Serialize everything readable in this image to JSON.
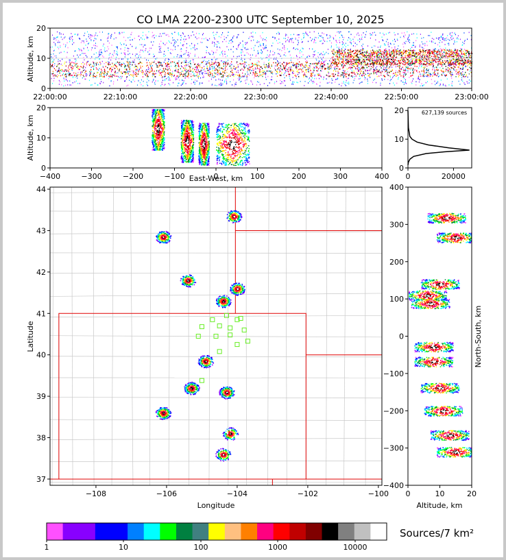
{
  "title": "CO LMA 2200-2300 UTC September 10, 2025",
  "chart_data": [
    {
      "type": "heatmap",
      "name": "time-altitude",
      "ylabel": "Altitude, km",
      "ylim": [
        0,
        20
      ],
      "yticks": [
        "0",
        "10",
        "20"
      ],
      "xticks": [
        "22:00:00",
        "22:10:00",
        "22:20:00",
        "22:30:00",
        "22:40:00",
        "22:50:00",
        "23:00:00"
      ],
      "bands": [
        {
          "t0": 0,
          "t1": 60,
          "alt0": 4,
          "alt1": 9,
          "level": "red"
        },
        {
          "t0": 40,
          "t1": 60,
          "alt0": 8,
          "alt1": 13,
          "level": "red"
        }
      ]
    },
    {
      "type": "heatmap",
      "name": "east-west-altitude",
      "xlabel": "East-West, km",
      "ylabel": "Altitude, km",
      "xlim": [
        -400,
        400
      ],
      "ylim": [
        0,
        20
      ],
      "xticks": [
        "−400",
        "−300",
        "−200",
        "−100",
        "0",
        "100",
        "200",
        "300",
        "400"
      ],
      "yticks": [
        "0",
        "10",
        "20"
      ],
      "clusters": [
        {
          "x": -140,
          "alt": 13,
          "w": 30
        },
        {
          "x": -70,
          "alt": 9,
          "w": 30
        },
        {
          "x": -30,
          "alt": 8,
          "w": 25
        },
        {
          "x": 40,
          "alt": 8,
          "w": 80
        }
      ]
    },
    {
      "type": "line",
      "name": "altitude-histogram",
      "annotation": "627,139 sources",
      "xticks": [
        "0",
        "20000"
      ],
      "yticks": [
        "0",
        "10",
        "20"
      ],
      "xlim": [
        0,
        28000
      ],
      "ylim": [
        0,
        21
      ],
      "x": [
        0,
        200,
        800,
        2500,
        8000,
        16000,
        27000,
        18000,
        9000,
        4000,
        1800,
        800,
        200,
        0
      ],
      "y": [
        1,
        2,
        3,
        4,
        5,
        5.6,
        6.2,
        7,
        8,
        9,
        10,
        11,
        14,
        20
      ]
    },
    {
      "type": "heatmap",
      "name": "plan-view",
      "xlabel": "Longitude",
      "ylabel": "Latitude",
      "xlim": [
        -109.3,
        -99.9
      ],
      "ylim": [
        36.85,
        44.05
      ],
      "xticks": [
        "−108",
        "−106",
        "−104",
        "−102",
        "−100"
      ],
      "yticks": [
        "37",
        "38",
        "39",
        "40",
        "41",
        "42",
        "43",
        "44"
      ],
      "clusters": [
        {
          "lon": -104.1,
          "lat": 43.35
        },
        {
          "lon": -106.1,
          "lat": 42.85
        },
        {
          "lon": -105.4,
          "lat": 41.8
        },
        {
          "lon": -104.0,
          "lat": 41.6
        },
        {
          "lon": -104.4,
          "lat": 41.3
        },
        {
          "lon": -104.9,
          "lat": 39.85
        },
        {
          "lon": -105.3,
          "lat": 39.2
        },
        {
          "lon": -106.1,
          "lat": 38.6
        },
        {
          "lon": -104.2,
          "lat": 38.1
        },
        {
          "lon": -104.4,
          "lat": 37.6
        },
        {
          "lon": -104.3,
          "lat": 39.1
        }
      ],
      "stations": [
        {
          "lon": -104.7,
          "lat": 40.85
        },
        {
          "lon": -104.3,
          "lat": 40.95
        },
        {
          "lon": -104.0,
          "lat": 40.85
        },
        {
          "lon": -103.9,
          "lat": 40.88
        },
        {
          "lon": -105.0,
          "lat": 40.68
        },
        {
          "lon": -104.5,
          "lat": 40.7
        },
        {
          "lon": -104.2,
          "lat": 40.65
        },
        {
          "lon": -103.8,
          "lat": 40.6
        },
        {
          "lon": -105.1,
          "lat": 40.45
        },
        {
          "lon": -104.6,
          "lat": 40.45
        },
        {
          "lon": -104.2,
          "lat": 40.48
        },
        {
          "lon": -103.7,
          "lat": 40.33
        },
        {
          "lon": -104.0,
          "lat": 40.25
        },
        {
          "lon": -104.5,
          "lat": 40.08
        },
        {
          "lon": -105.0,
          "lat": 39.38
        }
      ]
    },
    {
      "type": "heatmap",
      "name": "north-south-altitude",
      "xlabel": "Altitude, km",
      "ylabel": "North-South, km",
      "xlim": [
        0,
        20
      ],
      "ylim": [
        -400,
        400
      ],
      "xticks": [
        "0",
        "10",
        "20"
      ],
      "yticks": [
        "−400",
        "−300",
        "−200",
        "−100",
        "0",
        "100",
        "200",
        "300",
        "400"
      ],
      "clusters": [
        {
          "ns": 318,
          "alt": 12
        },
        {
          "ns": 265,
          "alt": 15
        },
        {
          "ns": 140,
          "alt": 10
        },
        {
          "ns": 110,
          "alt": 6
        },
        {
          "ns": 88,
          "alt": 7
        },
        {
          "ns": -28,
          "alt": 8
        },
        {
          "ns": -68,
          "alt": 8
        },
        {
          "ns": -138,
          "alt": 10
        },
        {
          "ns": -200,
          "alt": 11
        },
        {
          "ns": -265,
          "alt": 13
        },
        {
          "ns": -310,
          "alt": 15
        }
      ]
    }
  ],
  "colorbar": {
    "label": "Sources/7 km²",
    "ticks": [
      "1",
      "10",
      "100",
      "1000",
      "10000"
    ],
    "colors": [
      "#ff50ff",
      "#8800ff",
      "#8800ff",
      "#0000ff",
      "#0000ff",
      "#0080ff",
      "#00ffff",
      "#00ff00",
      "#008040",
      "#408080",
      "#ffff00",
      "#ffc080",
      "#ff8000",
      "#ff0080",
      "#ff0000",
      "#c00000",
      "#800000",
      "#000000",
      "#808080",
      "#c0c0c0",
      "#ffffff"
    ]
  }
}
